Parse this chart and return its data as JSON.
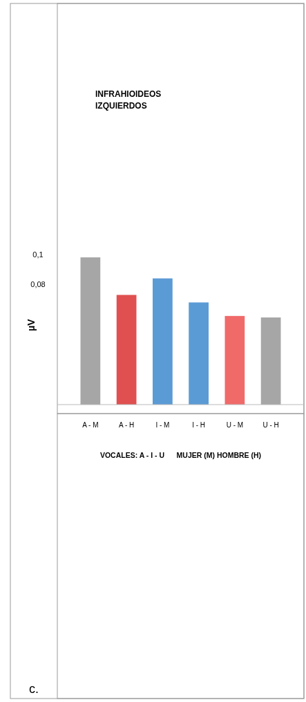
{
  "chart_data": {
    "type": "bar",
    "title": "INFRAHIOIDEOS IZQUIERDOS",
    "xlabel": "VOCALES: A - I - U      MUJER (M) HOMBRE (H)",
    "ylabel": "µV",
    "annotations": [
      "c."
    ],
    "categories": [
      "A - M",
      "A - H",
      "I - M",
      "I - H",
      "U - M",
      "U - H"
    ],
    "values": [
      0.098,
      0.073,
      0.084,
      0.068,
      0.059,
      0.058
    ],
    "colors": [
      "#a6a6a6",
      "#e05050",
      "#5b9bd5",
      "#5b9bd5",
      "#f06a6a",
      "#a6a6a6"
    ],
    "ylim": [
      0,
      0.267
    ],
    "yticks": [
      {
        "value": 0.1,
        "label": "0,1"
      },
      {
        "value": 0.08,
        "label": "0,08"
      }
    ],
    "grid": false
  }
}
